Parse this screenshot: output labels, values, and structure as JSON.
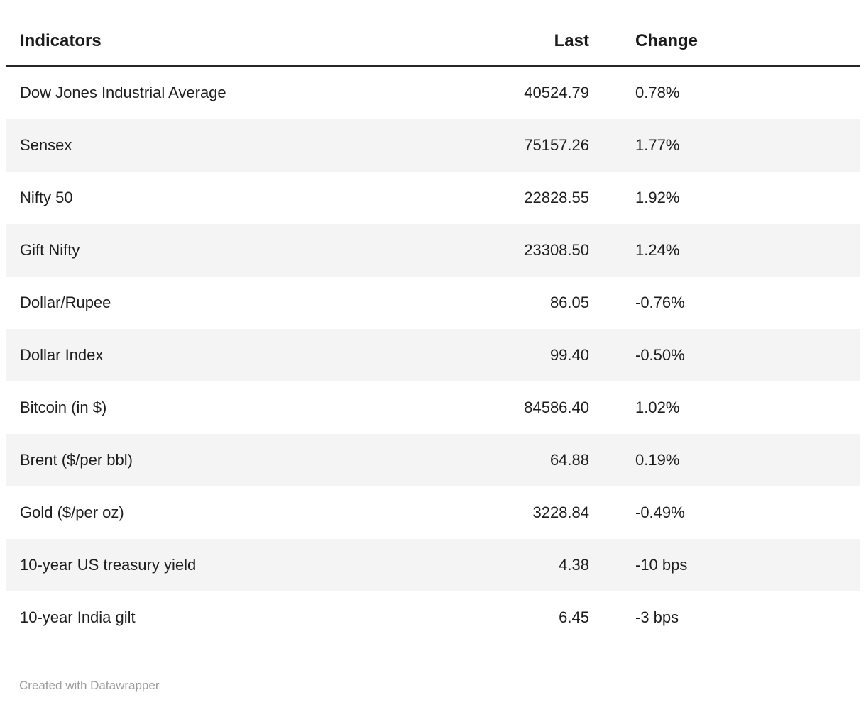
{
  "table": {
    "headers": {
      "indicator": "Indicators",
      "last": "Last",
      "change": "Change"
    },
    "rows": [
      {
        "indicator": "Dow Jones Industrial Average",
        "last": "40524.79",
        "change": "0.78%"
      },
      {
        "indicator": "Sensex",
        "last": "75157.26",
        "change": "1.77%"
      },
      {
        "indicator": "Nifty 50",
        "last": "22828.55",
        "change": "1.92%"
      },
      {
        "indicator": "Gift Nifty",
        "last": "23308.50",
        "change": "1.24%"
      },
      {
        "indicator": "Dollar/Rupee",
        "last": "86.05",
        "change": "-0.76%"
      },
      {
        "indicator": "Dollar Index",
        "last": "99.40",
        "change": "-0.50%"
      },
      {
        "indicator": "Bitcoin (in $)",
        "last": "84586.40",
        "change": "1.02%"
      },
      {
        "indicator": "Brent ($/per bbl)",
        "last": "64.88",
        "change": "0.19%"
      },
      {
        "indicator": "Gold ($/per oz)",
        "last": "3228.84",
        "change": "-0.49%"
      },
      {
        "indicator": "10-year US treasury yield",
        "last": "4.38",
        "change": "-10 bps"
      },
      {
        "indicator": "10-year India gilt",
        "last": "6.45",
        "change": "-3 bps"
      }
    ]
  },
  "footer": {
    "attribution": "Created with Datawrapper"
  },
  "colors": {
    "stripe": "#f4f4f4",
    "header_border": "#262626",
    "text": "#1d1d1d",
    "footer_text": "#9b9b9b",
    "background": "#ffffff"
  },
  "chart_data": {
    "type": "table",
    "title": "",
    "columns": [
      "Indicators",
      "Last",
      "Change"
    ],
    "rows": [
      [
        "Dow Jones Industrial Average",
        40524.79,
        "0.78%"
      ],
      [
        "Sensex",
        75157.26,
        "1.77%"
      ],
      [
        "Nifty 50",
        22828.55,
        "1.92%"
      ],
      [
        "Gift Nifty",
        23308.5,
        "1.24%"
      ],
      [
        "Dollar/Rupee",
        86.05,
        "-0.76%"
      ],
      [
        "Dollar Index",
        99.4,
        "-0.50%"
      ],
      [
        "Bitcoin (in $)",
        84586.4,
        "1.02%"
      ],
      [
        "Brent ($/per bbl)",
        64.88,
        "0.19%"
      ],
      [
        "Gold ($/per oz)",
        3228.84,
        "-0.49%"
      ],
      [
        "10-year US treasury yield",
        4.38,
        "-10 bps"
      ],
      [
        "10-year India gilt",
        6.45,
        "-3 bps"
      ]
    ],
    "layout": {
      "striped_rows": true,
      "last_column_align": "right",
      "change_column_align": "left",
      "grid": false
    }
  }
}
